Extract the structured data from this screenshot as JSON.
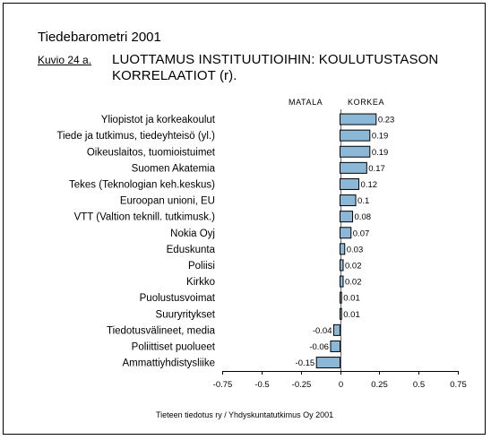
{
  "header": {
    "publication": "Tiedebarometri 2001",
    "figure_label": "Kuvio 24 a.",
    "title_line1": "LUOTTAMUS INSTITUUTIOIHIN: KOULUTUSTASON",
    "title_line2": "KORRELAATIOT (r).",
    "scale_low": "MATALA",
    "scale_high": "KORKEA"
  },
  "footer": {
    "source": "Tieteen tiedotus ry / Yhdyskuntatutkimus Oy 2001"
  },
  "colors": {
    "bar_fill": "#8ab8d6",
    "bar_stroke": "#000000"
  },
  "chart_data": {
    "type": "bar",
    "orientation": "horizontal",
    "title": "LUOTTAMUS INSTITUUTIOIHIN: KOULUTUSTASON KORRELAATIOT (r).",
    "xlim": [
      -0.75,
      0.75
    ],
    "xticks": [
      -0.75,
      -0.5,
      -0.25,
      0,
      0.25,
      0.5,
      0.75
    ],
    "xtick_labels": [
      "-0.75",
      "-0.5",
      "-0.25",
      "0",
      "0.25",
      "0.5",
      "0.75"
    ],
    "grid": false,
    "categories": [
      "Yliopistot ja korkeakoulut",
      "Tiede ja tutkimus, tiedeyhteisö (yl.)",
      "Oikeuslaitos, tuomioistuimet",
      "Suomen Akatemia",
      "Tekes (Teknologian keh.keskus)",
      "Euroopan unioni, EU",
      "VTT (Valtion teknill. tutkimusk.)",
      "Nokia Oyj",
      "Eduskunta",
      "Poliisi",
      "Kirkko",
      "Puolustusvoimat",
      "Suuryritykset",
      "Tiedotusvälineet, media",
      "Poliittiset puolueet",
      "Ammattiyhdistysliike"
    ],
    "values": [
      0.23,
      0.19,
      0.19,
      0.17,
      0.12,
      0.1,
      0.08,
      0.07,
      0.03,
      0.02,
      0.02,
      0.01,
      0.01,
      -0.04,
      -0.06,
      -0.15
    ],
    "value_labels": [
      "0.23",
      "0.19",
      "0.19",
      "0.17",
      "0.12",
      "0.1",
      "0.08",
      "0.07",
      "0.03",
      "0.02",
      "0.02",
      "0.01",
      "0.01",
      "-0.04",
      "-0.06",
      "-0.15"
    ]
  }
}
